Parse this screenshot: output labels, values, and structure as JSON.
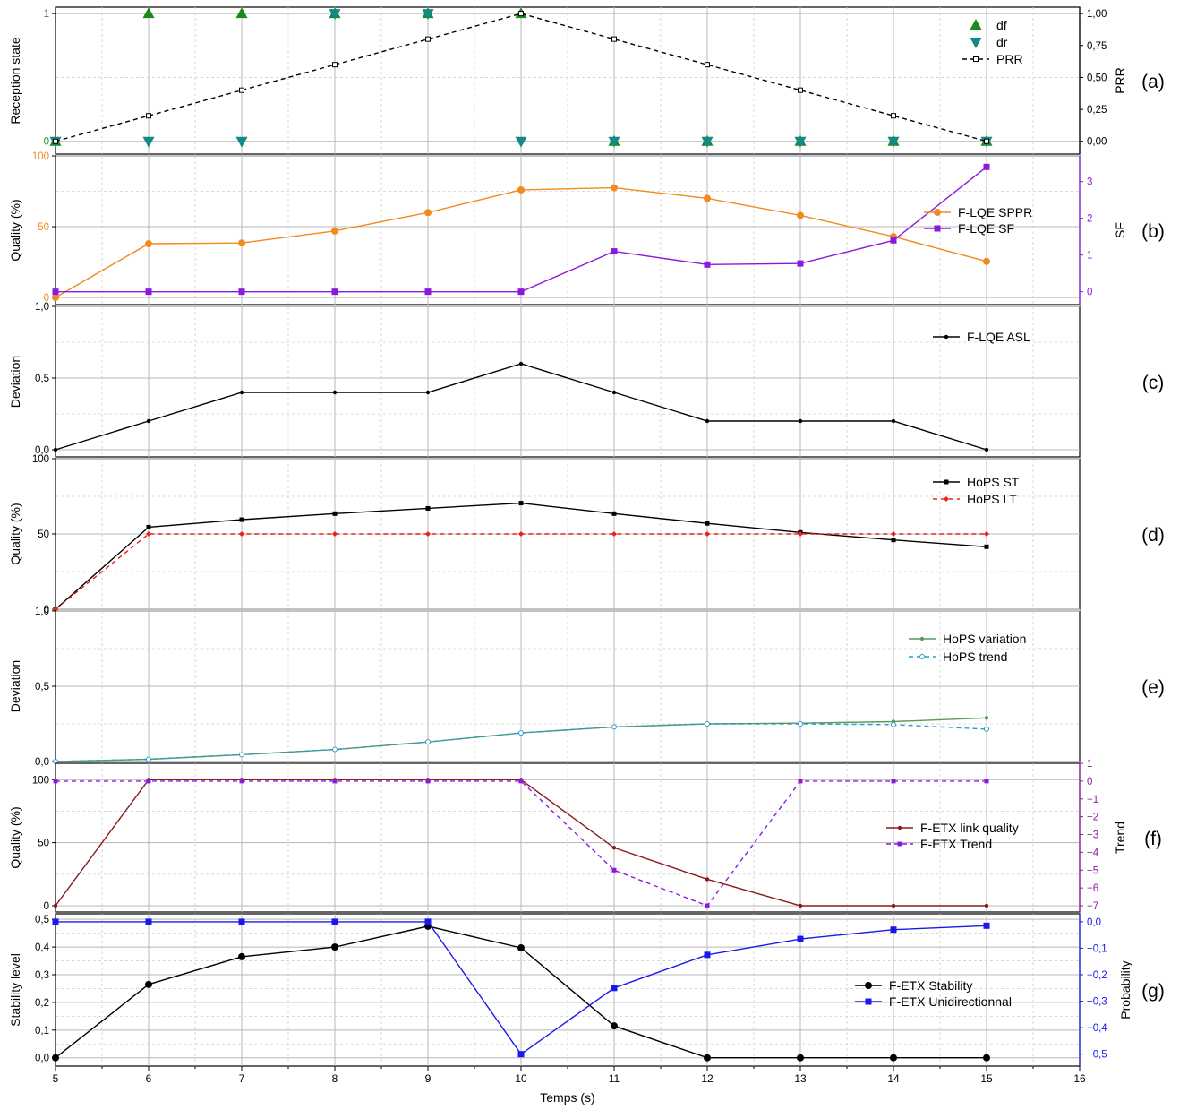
{
  "figure": {
    "xlabel": "Temps (s)",
    "xlim": [
      5,
      16
    ],
    "xticks": [
      "5",
      "6",
      "7",
      "8",
      "9",
      "10",
      "11",
      "12",
      "13",
      "14",
      "15",
      "16"
    ]
  },
  "chart_data": [
    {
      "id": "a",
      "panel_label": "(a)",
      "type": "line",
      "ylabel": "Reception state",
      "ylim": [
        -0.1,
        1.05
      ],
      "yticks": [
        {
          "v": 0,
          "t": "0"
        },
        {
          "v": 1,
          "t": "1"
        }
      ],
      "ytick_color": "#2e8b2e",
      "y2label": "PRR",
      "y2lim": [
        -0.1,
        1.05
      ],
      "y2ticks": [
        {
          "v": 0,
          "t": "0,00"
        },
        {
          "v": 0.25,
          "t": "0,25"
        },
        {
          "v": 0.5,
          "t": "0,50"
        },
        {
          "v": 0.75,
          "t": "0,75"
        },
        {
          "v": 1,
          "t": "1,00"
        }
      ],
      "legend_position": "top-right",
      "series": [
        {
          "name": "df",
          "axis": "y",
          "marker": "triangle-up",
          "color": "#1a8a1a",
          "line": "none",
          "x": [
            5,
            6,
            7,
            8,
            9,
            10,
            11,
            12,
            13,
            14,
            15
          ],
          "y": [
            0,
            1,
            1,
            1,
            1,
            1,
            0,
            0,
            0,
            0,
            0
          ]
        },
        {
          "name": "dr",
          "axis": "y",
          "marker": "triangle-down",
          "color": "#138a8a",
          "line": "none",
          "x": [
            5,
            6,
            7,
            8,
            9,
            10,
            11,
            12,
            13,
            14,
            15
          ],
          "y": [
            0,
            0,
            0,
            1,
            1,
            0,
            0,
            0,
            0,
            0,
            0
          ]
        },
        {
          "name": "PRR",
          "axis": "y2",
          "marker": "square-open",
          "color": "#000000",
          "line": "dashed",
          "x": [
            5,
            6,
            7,
            8,
            9,
            10,
            11,
            12,
            13,
            14,
            15
          ],
          "y": [
            0,
            0.2,
            0.4,
            0.6,
            0.8,
            1.0,
            0.8,
            0.6,
            0.4,
            0.2,
            0
          ]
        }
      ]
    },
    {
      "id": "b",
      "panel_label": "(b)",
      "type": "line",
      "ylabel": "Quality (%)",
      "ylim": [
        -5,
        100
      ],
      "yticks": [
        {
          "v": 0,
          "t": "0"
        },
        {
          "v": 50,
          "t": "50"
        },
        {
          "v": 100,
          "t": "100"
        }
      ],
      "ytick_color": "#f28a1e",
      "y2label": "SF",
      "y2lim": [
        -0.35,
        3.7
      ],
      "y2tick_color": "#8a1adb",
      "y2ticks": [
        {
          "v": 0,
          "t": "0"
        },
        {
          "v": 1,
          "t": "1"
        },
        {
          "v": 2,
          "t": "2"
        },
        {
          "v": 3,
          "t": "3"
        }
      ],
      "legend_position": "right",
      "series": [
        {
          "name": "F-LQE SPPR",
          "axis": "y",
          "marker": "circle",
          "color": "#f28a1e",
          "line": "solid",
          "x": [
            5,
            6,
            7,
            8,
            9,
            10,
            11,
            12,
            13,
            14,
            15
          ],
          "y": [
            0,
            38,
            38.5,
            47,
            60,
            76,
            77.5,
            70,
            58,
            43,
            25.5
          ]
        },
        {
          "name": "F-LQE SF",
          "axis": "y2",
          "marker": "square",
          "color": "#8a1adb",
          "line": "solid",
          "x": [
            5,
            6,
            7,
            8,
            9,
            10,
            11,
            12,
            13,
            14,
            15
          ],
          "y": [
            0,
            0,
            0,
            0,
            0,
            0,
            1.1,
            0.74,
            0.77,
            1.4,
            3.4
          ]
        }
      ]
    },
    {
      "id": "c",
      "panel_label": "(c)",
      "type": "line",
      "ylabel": "Deviation",
      "ylim": [
        -0.05,
        1.0
      ],
      "yticks": [
        {
          "v": 0,
          "t": "0,0"
        },
        {
          "v": 0.5,
          "t": "0,5"
        },
        {
          "v": 1,
          "t": "1,0"
        }
      ],
      "legend_position": "top-right",
      "series": [
        {
          "name": "F-LQE ASL",
          "axis": "y",
          "marker": "dot",
          "color": "#000000",
          "line": "solid",
          "x": [
            5,
            6,
            7,
            8,
            9,
            10,
            11,
            12,
            13,
            14,
            15
          ],
          "y": [
            0,
            0.2,
            0.4,
            0.4,
            0.4,
            0.6,
            0.4,
            0.2,
            0.2,
            0.2,
            0
          ]
        }
      ]
    },
    {
      "id": "d",
      "panel_label": "(d)",
      "type": "line",
      "ylabel": "Quality (%)",
      "ylim": [
        0,
        100
      ],
      "yticks": [
        {
          "v": 0,
          "t": "0"
        },
        {
          "v": 50,
          "t": "50"
        },
        {
          "v": 100,
          "t": "100"
        }
      ],
      "legend_position": "top-right",
      "series": [
        {
          "name": "HoPS ST",
          "axis": "y",
          "marker": "square-small",
          "color": "#000000",
          "line": "solid",
          "x": [
            5,
            6,
            7,
            8,
            9,
            10,
            11,
            12,
            13,
            14,
            15
          ],
          "y": [
            0,
            54.5,
            59.5,
            63.5,
            67,
            70.5,
            63.5,
            57,
            51,
            46,
            41.5
          ]
        },
        {
          "name": "HoPS LT",
          "axis": "y",
          "marker": "diamond-small",
          "color": "#e8201e",
          "line": "dashed",
          "x": [
            5,
            6,
            7,
            8,
            9,
            10,
            11,
            12,
            13,
            14,
            15
          ],
          "y": [
            0,
            50,
            50,
            50,
            50,
            50,
            50,
            50,
            50,
            50,
            50
          ]
        }
      ]
    },
    {
      "id": "e",
      "panel_label": "(e)",
      "type": "line",
      "ylabel": "Deviation",
      "ylim": [
        0,
        1.0
      ],
      "yticks": [
        {
          "v": 0,
          "t": "0,0"
        },
        {
          "v": 0.5,
          "t": "0,5"
        },
        {
          "v": 1,
          "t": "1,0"
        }
      ],
      "legend_position": "top-right",
      "series": [
        {
          "name": "HoPS variation",
          "axis": "y",
          "marker": "dot",
          "color": "#5a9a5a",
          "line": "solid",
          "x": [
            5,
            6,
            7,
            8,
            9,
            10,
            11,
            12,
            13,
            14,
            15
          ],
          "y": [
            0,
            0.015,
            0.045,
            0.08,
            0.13,
            0.19,
            0.23,
            0.25,
            0.255,
            0.265,
            0.29
          ]
        },
        {
          "name": "HoPS trend",
          "axis": "y",
          "marker": "circle-open",
          "color": "#2a9ac8",
          "line": "dashed",
          "x": [
            5,
            6,
            7,
            8,
            9,
            10,
            11,
            12,
            13,
            14,
            15
          ],
          "y": [
            0,
            0.015,
            0.045,
            0.08,
            0.13,
            0.19,
            0.23,
            0.25,
            0.25,
            0.245,
            0.215
          ]
        }
      ]
    },
    {
      "id": "f",
      "panel_label": "(f)",
      "type": "line",
      "ylabel": "Quality (%)",
      "ylim": [
        -5,
        113
      ],
      "yticks": [
        {
          "v": 0,
          "t": "0"
        },
        {
          "v": 50,
          "t": "50"
        },
        {
          "v": 100,
          "t": "100"
        }
      ],
      "y2label": "Trend",
      "y2lim": [
        -7.35,
        1.0
      ],
      "y2tick_color": "#8a1a9a",
      "y2ticks": [
        {
          "v": 1,
          "t": "1"
        },
        {
          "v": 0,
          "t": "0"
        },
        {
          "v": -1,
          "t": "−1"
        },
        {
          "v": -2,
          "t": "−2"
        },
        {
          "v": -3,
          "t": "−3"
        },
        {
          "v": -4,
          "t": "−4"
        },
        {
          "v": -5,
          "t": "−5"
        },
        {
          "v": -6,
          "t": "−6"
        },
        {
          "v": -7,
          "t": "−7"
        }
      ],
      "legend_position": "right",
      "series": [
        {
          "name": "F-ETX link quality",
          "axis": "y",
          "marker": "dot",
          "color": "#8b1a1a",
          "line": "solid",
          "x": [
            5,
            6,
            7,
            8,
            9,
            10,
            11,
            12,
            13,
            14,
            15
          ],
          "y": [
            0,
            100,
            100,
            100,
            100,
            100,
            46,
            21,
            0,
            0,
            0
          ]
        },
        {
          "name": "F-ETX Trend",
          "axis": "y2",
          "marker": "square-small",
          "color": "#8a1adb",
          "line": "dashed",
          "x": [
            5,
            6,
            7,
            8,
            9,
            10,
            11,
            12,
            13,
            14,
            15
          ],
          "y": [
            0,
            0,
            0,
            0,
            0,
            0,
            -5,
            -7,
            0,
            0,
            0
          ]
        }
      ]
    },
    {
      "id": "g",
      "panel_label": "(g)",
      "type": "line",
      "ylabel": "Stability level",
      "ylim": [
        -0.03,
        0.52
      ],
      "yticks": [
        {
          "v": 0,
          "t": "0,0"
        },
        {
          "v": 0.1,
          "t": "0,1"
        },
        {
          "v": 0.2,
          "t": "0,2"
        },
        {
          "v": 0.3,
          "t": "0,3"
        },
        {
          "v": 0.4,
          "t": "0,4"
        },
        {
          "v": 0.5,
          "t": "0,5"
        }
      ],
      "y2label": "Probability",
      "y2lim": [
        -0.545,
        0.03
      ],
      "y2tick_color": "#1a1ae8",
      "y2ticks": [
        {
          "v": 0,
          "t": "0,0"
        },
        {
          "v": -0.1,
          "t": "−0,1"
        },
        {
          "v": -0.2,
          "t": "−0,2"
        },
        {
          "v": -0.3,
          "t": "−0,3"
        },
        {
          "v": -0.4,
          "t": "−0,4"
        },
        {
          "v": -0.5,
          "t": "−0,5"
        }
      ],
      "legend_position": "right",
      "series": [
        {
          "name": "F-ETX Stability",
          "axis": "y",
          "marker": "circle",
          "color": "#000000",
          "line": "solid",
          "x": [
            5,
            6,
            7,
            8,
            9,
            10,
            11,
            12,
            13,
            14,
            15
          ],
          "y": [
            0,
            0.265,
            0.365,
            0.4,
            0.475,
            0.397,
            0.115,
            0,
            0,
            0,
            0
          ]
        },
        {
          "name": "F-ETX Unidirectionnal",
          "axis": "y2",
          "marker": "square",
          "color": "#1a1ae8",
          "line": "solid",
          "x": [
            5,
            6,
            7,
            8,
            9,
            10,
            11,
            12,
            13,
            14,
            15
          ],
          "y": [
            0,
            0,
            0,
            0,
            0,
            -0.5,
            -0.25,
            -0.125,
            -0.065,
            -0.03,
            -0.015
          ]
        }
      ]
    }
  ]
}
